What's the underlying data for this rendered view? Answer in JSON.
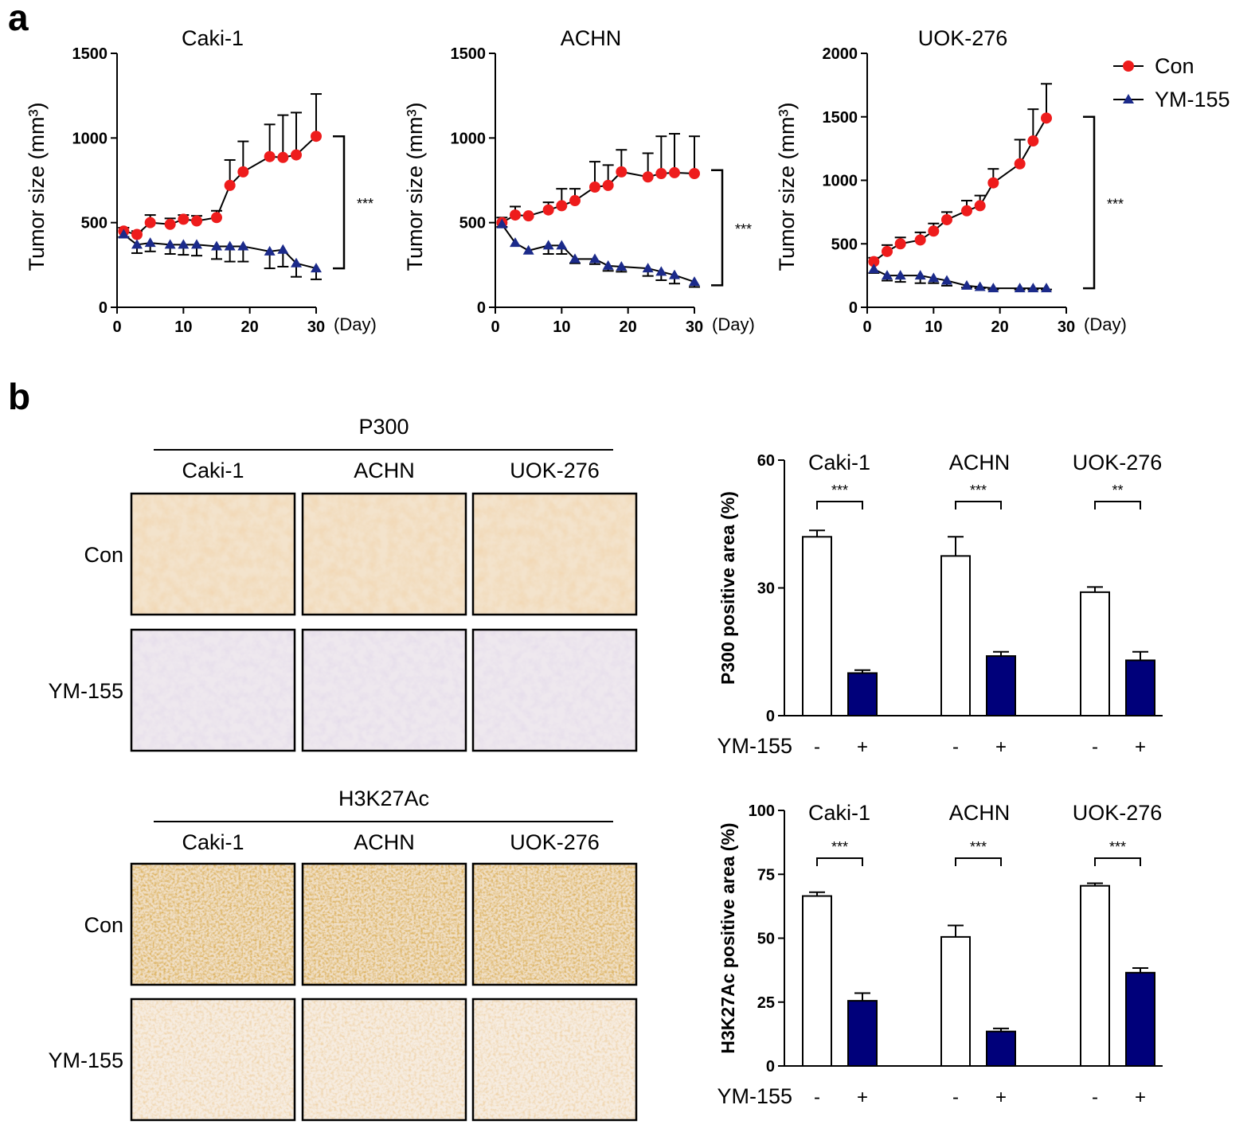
{
  "panel_labels": [
    "a",
    "b"
  ],
  "legend": {
    "con": "Con",
    "ym": "YM-155"
  },
  "colors": {
    "con": "#ee1c1c",
    "ym": "#1b2a8a",
    "bar_ym": "#00007a",
    "bar_con": "#ffffff"
  },
  "chart_data": [
    {
      "type": "line",
      "title": "Caki-1",
      "ylabel": "Tumor size (mm³)",
      "xlabel": "(Day)",
      "xlim": [
        0,
        30
      ],
      "ylim": [
        0,
        1500
      ],
      "xticks": [
        0,
        10,
        20,
        30
      ],
      "yticks": [
        0,
        500,
        1000,
        1500
      ],
      "significance": "***",
      "sig_range": [
        230,
        1010
      ],
      "series": [
        {
          "name": "Con",
          "x": [
            1,
            3,
            5,
            8,
            10,
            12,
            15,
            17,
            19,
            23,
            25,
            27,
            30
          ],
          "y": [
            450,
            430,
            500,
            490,
            520,
            510,
            530,
            720,
            800,
            890,
            885,
            900,
            1010
          ],
          "err": [
            20,
            20,
            45,
            35,
            25,
            30,
            40,
            150,
            180,
            190,
            250,
            250,
            250
          ]
        },
        {
          "name": "YM-155",
          "x": [
            1,
            3,
            5,
            8,
            10,
            12,
            15,
            17,
            19,
            23,
            25,
            27,
            30
          ],
          "y": [
            430,
            370,
            380,
            370,
            370,
            370,
            360,
            360,
            360,
            330,
            340,
            260,
            230
          ],
          "err": [
            15,
            50,
            50,
            55,
            60,
            65,
            75,
            90,
            90,
            100,
            100,
            80,
            65
          ]
        }
      ]
    },
    {
      "type": "line",
      "title": "ACHN",
      "ylabel": "Tumor size (mm³)",
      "xlabel": "(Day)",
      "xlim": [
        0,
        30
      ],
      "ylim": [
        0,
        1500
      ],
      "xticks": [
        0,
        10,
        20,
        30
      ],
      "yticks": [
        0,
        500,
        1000,
        1500
      ],
      "significance": "***",
      "sig_range": [
        130,
        810
      ],
      "series": [
        {
          "name": "Con",
          "x": [
            1,
            3,
            5,
            8,
            10,
            12,
            15,
            17,
            19,
            23,
            25,
            27,
            30
          ],
          "y": [
            500,
            545,
            540,
            575,
            600,
            630,
            710,
            720,
            800,
            770,
            790,
            795,
            790
          ],
          "err": [
            30,
            50,
            0,
            45,
            100,
            70,
            150,
            120,
            130,
            140,
            220,
            230,
            220
          ]
        },
        {
          "name": "YM-155",
          "x": [
            1,
            3,
            5,
            8,
            10,
            12,
            15,
            17,
            19,
            23,
            25,
            27,
            30
          ],
          "y": [
            490,
            380,
            335,
            365,
            365,
            285,
            285,
            245,
            240,
            230,
            210,
            190,
            150
          ],
          "err": [
            15,
            0,
            0,
            50,
            50,
            25,
            30,
            30,
            30,
            45,
            50,
            50,
            30
          ]
        }
      ]
    },
    {
      "type": "line",
      "title": "UOK-276",
      "ylabel": "Tumor size (mm³)",
      "xlabel": "(Day)",
      "xlim": [
        0,
        30
      ],
      "ylim": [
        0,
        2000
      ],
      "xticks": [
        0,
        10,
        20,
        30
      ],
      "yticks": [
        0,
        500,
        1000,
        1500,
        2000
      ],
      "significance": "***",
      "sig_range": [
        150,
        1500
      ],
      "series": [
        {
          "name": "Con",
          "x": [
            1,
            3,
            5,
            8,
            10,
            12,
            15,
            17,
            19,
            23,
            25,
            27
          ],
          "y": [
            360,
            440,
            500,
            530,
            600,
            690,
            760,
            800,
            980,
            1130,
            1310,
            1490
          ],
          "err": [
            30,
            50,
            50,
            60,
            60,
            60,
            80,
            80,
            110,
            190,
            250,
            270
          ]
        },
        {
          "name": "YM-155",
          "x": [
            1,
            3,
            5,
            8,
            10,
            12,
            15,
            17,
            19,
            23,
            25,
            27
          ],
          "y": [
            300,
            250,
            250,
            250,
            230,
            210,
            170,
            160,
            150,
            150,
            150,
            150
          ],
          "err": [
            30,
            40,
            50,
            60,
            40,
            40,
            15,
            10,
            10,
            10,
            10,
            10
          ]
        }
      ]
    },
    {
      "type": "bar",
      "ylabel": "P300 positive area (%)",
      "ylim": [
        0,
        60
      ],
      "yticks": [
        0,
        30,
        60
      ],
      "categories": [
        "Caki-1",
        "ACHN",
        "UOK-276"
      ],
      "treatment_label": "YM-155",
      "signs": [
        "-",
        "+"
      ],
      "series": [
        {
          "name": "Con",
          "values": [
            42,
            37.5,
            29
          ],
          "err": [
            1.5,
            4.5,
            1.2
          ]
        },
        {
          "name": "YM-155",
          "values": [
            10,
            14,
            13
          ],
          "err": [
            0.7,
            1.0,
            2.0
          ]
        }
      ],
      "significance": [
        "***",
        "***",
        "**"
      ]
    },
    {
      "type": "bar",
      "ylabel": "H3K27Ac positive area (%)",
      "ylim": [
        0,
        100
      ],
      "yticks": [
        0,
        25,
        50,
        75,
        100
      ],
      "categories": [
        "Caki-1",
        "ACHN",
        "UOK-276"
      ],
      "treatment_label": "YM-155",
      "signs": [
        "-",
        "+"
      ],
      "series": [
        {
          "name": "Con",
          "values": [
            66.5,
            50.5,
            70.5
          ],
          "err": [
            1.5,
            4.5,
            1.0
          ]
        },
        {
          "name": "YM-155",
          "values": [
            25.5,
            13.5,
            36.5
          ],
          "err": [
            3.0,
            1.2,
            1.8
          ]
        }
      ],
      "significance": [
        "***",
        "***",
        "***"
      ]
    }
  ],
  "ihc": [
    {
      "stain": "P300",
      "columns": [
        "Caki-1",
        "ACHN",
        "UOK-276"
      ],
      "rows": [
        "Con",
        "YM-155"
      ]
    },
    {
      "stain": "H3K27Ac",
      "columns": [
        "Caki-1",
        "ACHN",
        "UOK-276"
      ],
      "rows": [
        "Con",
        "YM-155"
      ]
    }
  ]
}
